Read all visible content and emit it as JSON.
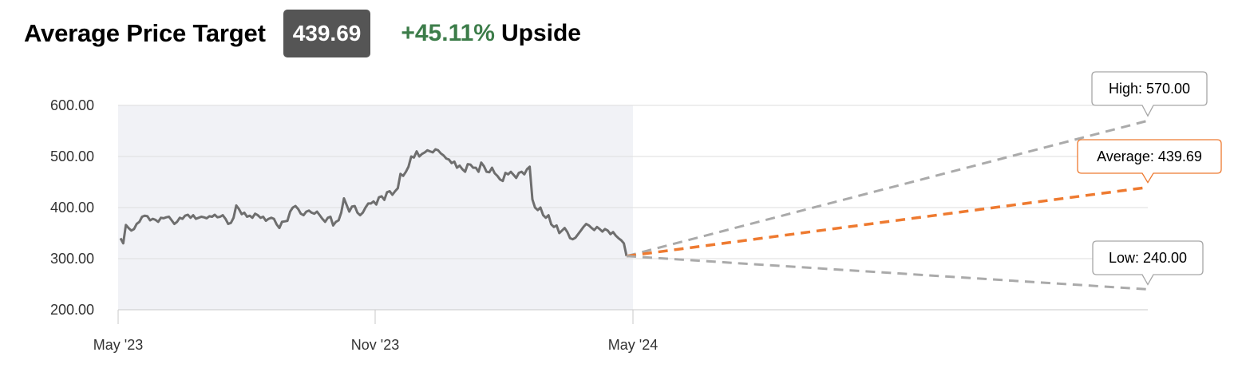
{
  "header": {
    "title": "Average Price Target",
    "price": "439.69",
    "upside_pct": "+45.11%",
    "upside_word": "Upside"
  },
  "colors": {
    "history_line": "#6e6e6e",
    "history_bg": "#f1f2f6",
    "avg_line": "#ee7a30",
    "bound_line": "#aaaaaa",
    "grid": "#dddddd",
    "upside": "#3d7d4a",
    "badge_bg": "#555555"
  },
  "chart_data": {
    "type": "line",
    "title": "Average Price Target",
    "ylim": [
      200,
      600
    ],
    "yticks": [
      "600.00",
      "500.00",
      "400.00",
      "300.00",
      "200.00"
    ],
    "xticks": [
      "May '23",
      "Nov '23",
      "May '24"
    ],
    "grid": true,
    "history": {
      "x_start": "2023-05",
      "x_end": "2024-05",
      "values": [
        340,
        330,
        366,
        360,
        355,
        358,
        368,
        372,
        382,
        384,
        383,
        375,
        378,
        376,
        372,
        380,
        379,
        381,
        382,
        375,
        368,
        372,
        380,
        378,
        384,
        386,
        380,
        385,
        378,
        380,
        382,
        381,
        379,
        383,
        382,
        386,
        381,
        382,
        385,
        378,
        368,
        370,
        380,
        404,
        397,
        387,
        390,
        382,
        384,
        380,
        388,
        385,
        380,
        382,
        374,
        378,
        380,
        378,
        367,
        360,
        372,
        373,
        374,
        392,
        400,
        403,
        397,
        388,
        385,
        392,
        394,
        390,
        388,
        392,
        385,
        378,
        372,
        380,
        382,
        365,
        372,
        375,
        390,
        418,
        405,
        392,
        402,
        403,
        390,
        385,
        390,
        400,
        408,
        408,
        412,
        406,
        420,
        422,
        415,
        430,
        432,
        425,
        432,
        438,
        466,
        462,
        470,
        480,
        500,
        498,
        510,
        500,
        505,
        508,
        512,
        510,
        508,
        514,
        512,
        506,
        502,
        496,
        494,
        487,
        490,
        478,
        482,
        475,
        470,
        485,
        484,
        478,
        478,
        470,
        488,
        481,
        470,
        469,
        478,
        467,
        462,
        455,
        452,
        468,
        465,
        470,
        464,
        458,
        468,
        470,
        465,
        475,
        480,
        416,
        400,
        395,
        400,
        385,
        380,
        385,
        367,
        362,
        365,
        350,
        355,
        360,
        352,
        340,
        338,
        341,
        348,
        355,
        362,
        368,
        365,
        360,
        356,
        362,
        358,
        353,
        358,
        355,
        348,
        352,
        345,
        340,
        336,
        330,
        305
      ]
    },
    "forecast": {
      "start_value": 305,
      "series": [
        {
          "name": "High",
          "target": 570.0,
          "label": "High: 570.00"
        },
        {
          "name": "Average",
          "target": 439.69,
          "label": "Average: 439.69"
        },
        {
          "name": "Low",
          "target": 240.0,
          "label": "Low: 240.00"
        }
      ]
    }
  }
}
